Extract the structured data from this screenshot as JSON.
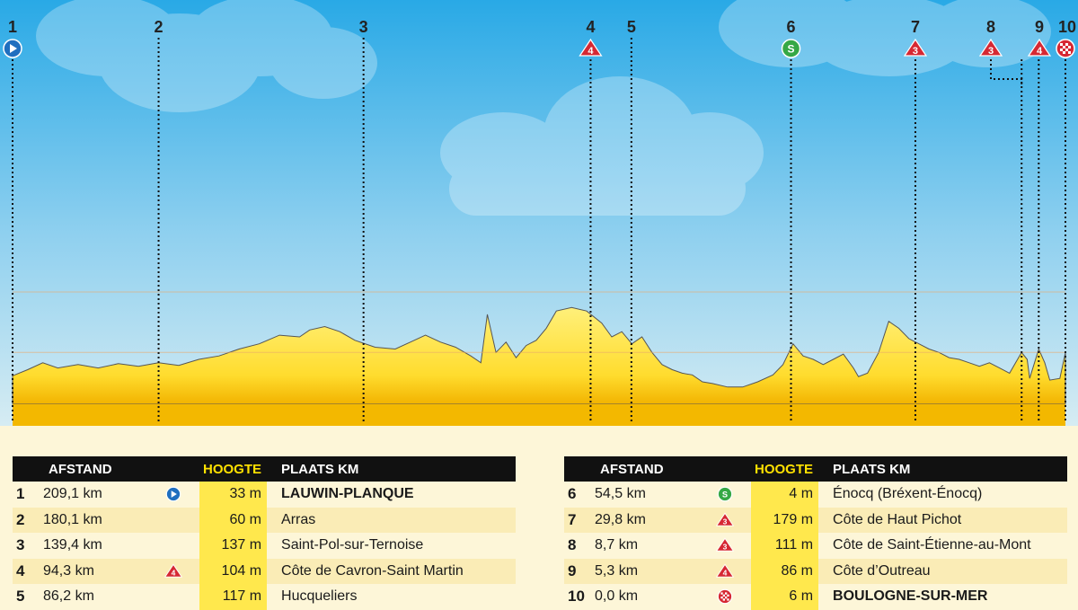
{
  "chart_data": {
    "type": "area",
    "title": "",
    "xlabel": "",
    "ylabel": "",
    "x_unit": "km",
    "xlim": [
      0,
      209.1
    ],
    "ylim": [
      0,
      260
    ],
    "profile": [
      [
        0,
        33
      ],
      [
        3,
        40
      ],
      [
        6,
        48
      ],
      [
        9,
        42
      ],
      [
        13,
        46
      ],
      [
        17,
        42
      ],
      [
        21,
        47
      ],
      [
        25,
        44
      ],
      [
        29,
        48
      ],
      [
        33,
        45
      ],
      [
        37,
        52
      ],
      [
        41,
        56
      ],
      [
        45,
        64
      ],
      [
        49,
        70
      ],
      [
        53,
        80
      ],
      [
        57,
        78
      ],
      [
        59,
        86
      ],
      [
        62,
        90
      ],
      [
        65,
        84
      ],
      [
        68,
        74
      ],
      [
        72,
        66
      ],
      [
        76,
        64
      ],
      [
        79,
        72
      ],
      [
        82,
        80
      ],
      [
        85,
        72
      ],
      [
        88,
        66
      ],
      [
        91,
        56
      ],
      [
        93,
        48
      ],
      [
        94.3,
        104
      ],
      [
        96,
        60
      ],
      [
        98,
        72
      ],
      [
        100,
        54
      ],
      [
        102,
        68
      ],
      [
        104,
        74
      ],
      [
        106,
        88
      ],
      [
        108,
        108
      ],
      [
        111,
        112
      ],
      [
        114,
        108
      ],
      [
        117,
        94
      ],
      [
        119,
        78
      ],
      [
        121,
        84
      ],
      [
        123,
        70
      ],
      [
        125,
        78
      ],
      [
        127,
        60
      ],
      [
        129,
        46
      ],
      [
        131,
        40
      ],
      [
        133,
        36
      ],
      [
        135,
        34
      ],
      [
        137,
        26
      ],
      [
        139,
        24
      ],
      [
        142,
        20
      ],
      [
        145,
        20
      ],
      [
        148,
        26
      ],
      [
        151,
        34
      ],
      [
        153,
        46
      ],
      [
        155,
        70
      ],
      [
        157,
        56
      ],
      [
        159,
        52
      ],
      [
        161,
        46
      ],
      [
        163,
        52
      ],
      [
        165,
        58
      ],
      [
        167,
        42
      ],
      [
        168,
        32
      ],
      [
        169.8,
        36
      ],
      [
        172,
        60
      ],
      [
        174,
        96
      ],
      [
        176,
        88
      ],
      [
        178,
        76
      ],
      [
        180,
        70
      ],
      [
        182,
        64
      ],
      [
        184,
        60
      ],
      [
        186,
        54
      ],
      [
        188,
        52
      ],
      [
        190,
        48
      ],
      [
        192,
        44
      ],
      [
        194,
        48
      ],
      [
        196,
        42
      ],
      [
        198,
        36
      ],
      [
        200.4,
        60
      ],
      [
        201.5,
        52
      ],
      [
        202,
        30
      ],
      [
        203.8,
        64
      ],
      [
        205,
        48
      ],
      [
        206,
        28
      ],
      [
        208,
        30
      ],
      [
        209.1,
        60
      ]
    ],
    "markers": [
      {
        "id": "1",
        "km": 0,
        "icon": "start"
      },
      {
        "id": "2",
        "km": 29.0,
        "icon": ""
      },
      {
        "id": "3",
        "km": 69.7,
        "icon": ""
      },
      {
        "id": "4",
        "km": 114.8,
        "icon": "cat4"
      },
      {
        "id": "5",
        "km": 122.9,
        "icon": ""
      },
      {
        "id": "6",
        "km": 154.6,
        "icon": "sprint"
      },
      {
        "id": "7",
        "km": 179.3,
        "icon": "cat3"
      },
      {
        "id": "8",
        "km": 200.4,
        "icon": "cat3"
      },
      {
        "id": "9",
        "km": 203.8,
        "icon": "cat4"
      },
      {
        "id": "10",
        "km": 209.1,
        "icon": "finish"
      }
    ]
  },
  "table": {
    "headers": {
      "afstand": "AFSTAND",
      "hoogte": "HOOGTE",
      "plaats": "PLAATS KM"
    },
    "rows": [
      {
        "num": "1",
        "dist": "209,1 km",
        "icon": "start",
        "hoogte": "33 m",
        "place": "LAUWIN-PLANQUE",
        "bold": true
      },
      {
        "num": "2",
        "dist": "180,1 km",
        "icon": "",
        "hoogte": "60 m",
        "place": "Arras",
        "bold": false
      },
      {
        "num": "3",
        "dist": "139,4 km",
        "icon": "",
        "hoogte": "137 m",
        "place": "Saint-Pol-sur-Ternoise",
        "bold": false
      },
      {
        "num": "4",
        "dist": "94,3 km",
        "icon": "cat4",
        "hoogte": "104 m",
        "place": "Côte de Cavron-Saint Martin",
        "bold": false
      },
      {
        "num": "5",
        "dist": "86,2 km",
        "icon": "",
        "hoogte": "117 m",
        "place": "Hucqueliers",
        "bold": false
      },
      {
        "num": "6",
        "dist": "54,5 km",
        "icon": "sprint",
        "hoogte": "4 m",
        "place": "Énocq (Bréxent-Énocq)",
        "bold": false
      },
      {
        "num": "7",
        "dist": "29,8 km",
        "icon": "cat3",
        "hoogte": "179 m",
        "place": "Côte de Haut Pichot",
        "bold": false
      },
      {
        "num": "8",
        "dist": "8,7 km",
        "icon": "cat3",
        "hoogte": "111 m",
        "place": "Côte de Saint-Étienne-au-Mont",
        "bold": false
      },
      {
        "num": "9",
        "dist": "5,3 km",
        "icon": "cat4",
        "hoogte": "86 m",
        "place": "Côte d’Outreau",
        "bold": false
      },
      {
        "num": "10",
        "dist": "0,0 km",
        "icon": "finish",
        "hoogte": "6 m",
        "place": "BOULOGNE-SUR-MER",
        "bold": true
      }
    ]
  },
  "icons": {
    "start": {
      "label": "",
      "color": "#1f6fbf"
    },
    "sprint": {
      "label": "S",
      "color": "#35a845"
    },
    "cat3": {
      "label": "3",
      "color": "#d62833"
    },
    "cat4": {
      "label": "4",
      "color": "#d62833"
    },
    "finish": {
      "label": "",
      "color": "#d62833"
    }
  },
  "colors": {
    "sky_top": "#29a9e6",
    "sky_bottom": "#c9e6f2",
    "profile": "#ffe24a",
    "profile_base": "#f3b800",
    "band": "#e9a86a"
  }
}
